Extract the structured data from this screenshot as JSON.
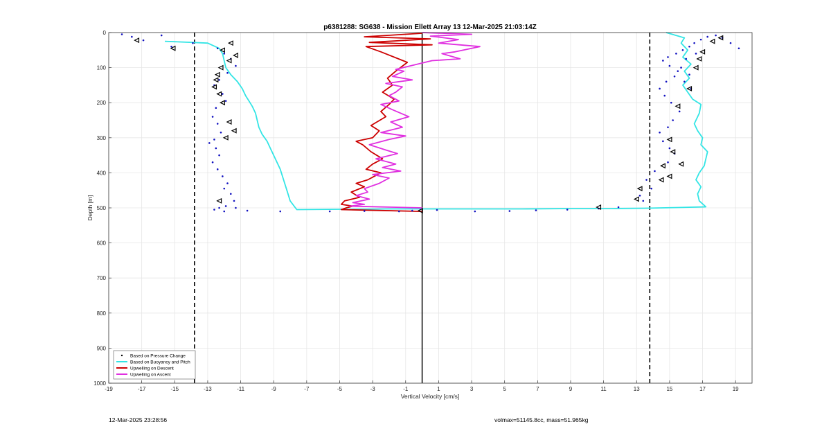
{
  "chart_data": {
    "type": "line",
    "title": "p6381288: SG638 - Mission Ellett Array 13 12-Mar-2025 21:03:14Z",
    "xlabel": "Vertical Velocity [cm/s]",
    "ylabel": "Depth [m]",
    "xlim": [
      -19,
      20
    ],
    "ylim": [
      0,
      1000
    ],
    "y_reversed": true,
    "grid": true,
    "legend_position": "bottom-left",
    "xticks": [
      -19,
      -17,
      -15,
      -13,
      -11,
      -9,
      -7,
      -5,
      -3,
      -1,
      1,
      3,
      5,
      7,
      9,
      11,
      13,
      15,
      17,
      19
    ],
    "yticks": [
      0,
      100,
      200,
      300,
      400,
      500,
      600,
      700,
      800,
      900,
      1000
    ],
    "reference_lines": [
      {
        "x": -13.8,
        "style": "dashed",
        "color": "#000000"
      },
      {
        "x": 13.8,
        "style": "dashed",
        "color": "#000000"
      },
      {
        "x": 0,
        "style": "solid",
        "color": "#000000"
      }
    ],
    "series": [
      {
        "name": "Based on Pressure Change",
        "kind": "scatter",
        "color": "#1010c0",
        "x": [
          -18.2,
          -17.6,
          -16.9,
          -15.8,
          -15.2,
          -13.9,
          -12.4,
          -12.0,
          -11.6,
          -11.3,
          -11.8,
          -12.3,
          -12.6,
          -12.1,
          -11.9,
          -12.5,
          -12.7,
          -12.4,
          -12.2,
          -12.6,
          -12.9,
          -12.5,
          -12.3,
          -12.7,
          -12.4,
          -12.1,
          -11.8,
          -12.0,
          -11.6,
          -11.4,
          -11.9,
          -12.3,
          -12.6,
          -12.0,
          -11.3,
          -10.6,
          -8.6,
          -5.6,
          -3.5,
          -1.4,
          -0.6,
          0.9,
          3.2,
          5.3,
          6.9,
          8.8,
          10.7,
          11.9,
          13.4,
          13.2,
          13.9,
          13.6,
          14.1,
          14.9,
          15.3,
          15.0,
          14.6,
          14.4,
          14.9,
          15.2,
          15.6,
          15.1,
          14.7,
          14.4,
          14.8,
          15.3,
          15.5,
          15.0,
          14.6,
          14.9,
          15.4,
          15.8,
          16.2,
          16.5,
          16.9,
          17.3,
          17.8,
          18.2,
          18.7,
          19.2,
          16.6,
          16.0,
          15.7,
          16.2,
          15.9,
          16.3
        ],
        "y": [
          5,
          12,
          22,
          8,
          40,
          30,
          45,
          60,
          75,
          95,
          115,
          135,
          150,
          175,
          195,
          215,
          240,
          260,
          285,
          305,
          315,
          330,
          350,
          370,
          390,
          410,
          430,
          445,
          460,
          480,
          495,
          500,
          505,
          510,
          500,
          508,
          510,
          510,
          509,
          510,
          508,
          506,
          510,
          509,
          507,
          505,
          502,
          498,
          480,
          465,
          445,
          420,
          395,
          370,
          345,
          330,
          310,
          285,
          270,
          250,
          225,
          200,
          180,
          160,
          140,
          125,
          110,
          95,
          80,
          70,
          60,
          50,
          40,
          30,
          20,
          12,
          8,
          15,
          30,
          45,
          60,
          75,
          100,
          120,
          140,
          160
        ]
      },
      {
        "name": "Based on Buoyancy and Pitch",
        "kind": "line",
        "color": "#33e5e5",
        "x": [
          -15.6,
          -13.0,
          -12.3,
          -12.1,
          -12.0,
          -11.9,
          -11.6,
          -11.2,
          -10.9,
          -10.7,
          -10.5,
          -10.3,
          -10.1,
          -10.0,
          -9.9,
          -9.7,
          -9.4,
          -9.2,
          -9.0,
          -8.8,
          -8.6,
          -8.4,
          -8.2,
          -8.0,
          -7.6,
          -5.0,
          -2.0,
          0.5,
          3.0,
          6.0,
          9.0,
          11.5,
          13.5,
          15.5,
          17.2,
          16.8,
          16.7,
          16.9,
          16.6,
          16.8,
          17.1,
          17.3,
          16.9,
          17.0,
          16.7,
          16.5,
          16.8,
          16.9,
          16.4,
          16.1,
          15.8,
          16.2,
          15.9,
          16.3,
          15.8,
          16.1,
          15.7,
          15.9,
          14.8
        ],
        "y": [
          25,
          30,
          45,
          60,
          80,
          100,
          120,
          140,
          160,
          180,
          195,
          210,
          230,
          250,
          270,
          290,
          310,
          330,
          350,
          370,
          390,
          420,
          450,
          480,
          505,
          504,
          503,
          503,
          503,
          503,
          502,
          502,
          501,
          499,
          497,
          480,
          460,
          440,
          420,
          400,
          380,
          340,
          320,
          300,
          280,
          260,
          230,
          205,
          190,
          170,
          150,
          130,
          110,
          90,
          70,
          50,
          30,
          15,
          0
        ]
      },
      {
        "name": "Upwelling on Descent",
        "kind": "line",
        "color": "#cc0000",
        "x": [
          0,
          -3.5,
          0.5,
          -3.2,
          0.6,
          -3.4,
          -2.5,
          -0.9,
          -1.6,
          -2.1,
          -1.8,
          -2.4,
          -1.7,
          -2.0,
          -2.5,
          -2.2,
          -3.1,
          -2.6,
          -3.0,
          -4.0,
          -3.6,
          -3.1,
          -2.4,
          -3.0,
          -3.4,
          -2.5,
          -3.3,
          -4.0,
          -3.5,
          -4.3,
          -3.8,
          -4.7,
          -4.9,
          -4.2,
          -4.6,
          -4.9,
          0
        ],
        "y": [
          2,
          12,
          18,
          28,
          35,
          40,
          55,
          85,
          110,
          130,
          150,
          170,
          190,
          205,
          225,
          240,
          265,
          280,
          300,
          310,
          320,
          340,
          360,
          375,
          390,
          400,
          420,
          430,
          440,
          455,
          470,
          480,
          490,
          495,
          500,
          505,
          510
        ]
      },
      {
        "name": "Upwelling on Ascent",
        "kind": "line",
        "color": "#e030e0",
        "x": [
          0,
          3.0,
          0.5,
          2.2,
          1.0,
          3.5,
          2.0,
          1.2,
          2.3,
          0.6,
          -1.6,
          -1.1,
          -1.8,
          -0.6,
          -2.2,
          -1.2,
          -1.6,
          -2.0,
          -1.4,
          -2.5,
          -1.8,
          -0.8,
          -1.9,
          -1.2,
          -2.5,
          -1.0,
          -2.0,
          -3.2,
          -2.2,
          -1.5,
          -2.8,
          -1.6,
          -2.4,
          -1.3,
          -3.0,
          -2.0,
          -2.6,
          -3.5,
          -3.3,
          -4.0,
          -3.2,
          -4.2,
          -3.5,
          -4.4,
          0
        ],
        "y": [
          0,
          5,
          10,
          20,
          30,
          40,
          55,
          60,
          75,
          80,
          105,
          110,
          125,
          135,
          145,
          155,
          170,
          180,
          195,
          205,
          220,
          240,
          255,
          270,
          285,
          295,
          305,
          320,
          335,
          345,
          360,
          375,
          385,
          395,
          405,
          415,
          430,
          445,
          455,
          465,
          475,
          485,
          490,
          495,
          500
        ]
      },
      {
        "name": "",
        "kind": "markers",
        "color": "#000000",
        "x": [
          -17.3,
          -15.1,
          -11.6,
          -12.1,
          -11.3,
          -11.7,
          -12.2,
          -12.4,
          -12.5,
          -12.6,
          -12.3,
          -12.1,
          -11.7,
          -11.4,
          -11.9,
          -12.3,
          -0.1,
          10.7,
          13.0,
          13.2,
          14.5,
          15.0,
          14.6,
          15.7,
          15.2,
          15.0,
          15.5,
          16.2,
          16.6,
          16.8,
          17.6,
          18.1,
          17.0
        ],
        "y": [
          22,
          45,
          30,
          50,
          65,
          80,
          100,
          120,
          135,
          155,
          175,
          200,
          255,
          280,
          300,
          480,
          508,
          498,
          475,
          445,
          420,
          410,
          380,
          375,
          340,
          305,
          210,
          160,
          100,
          75,
          25,
          15,
          55
        ]
      }
    ]
  },
  "footer": {
    "left": "12-Mar-2025 23:28:56",
    "right": "volmax=51145.8cc, mass=51.965kg"
  }
}
